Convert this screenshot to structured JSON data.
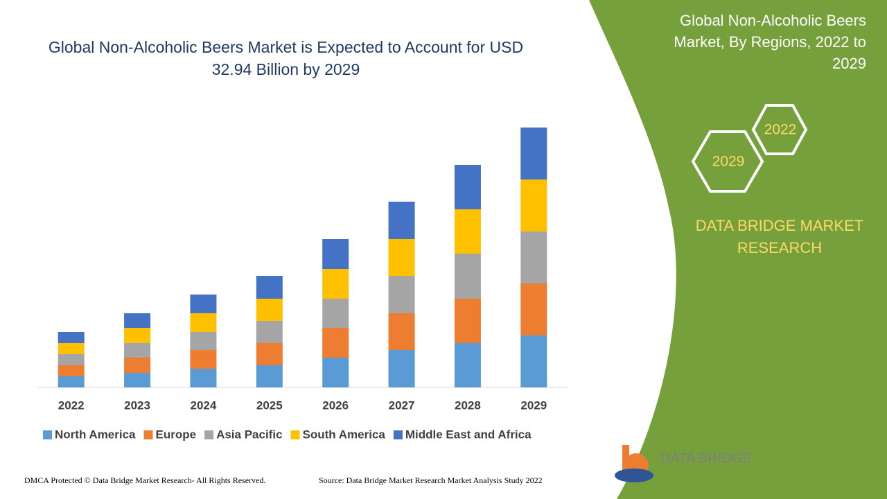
{
  "chart_data": {
    "type": "bar",
    "stacked": true,
    "title": "Global Non-Alcoholic Beers Market is Expected to Account for USD 32.94 Billion by 2029",
    "categories": [
      "2022",
      "2023",
      "2024",
      "2025",
      "2026",
      "2027",
      "2028",
      "2029"
    ],
    "series": [
      {
        "name": "North America",
        "color": "#5b9bd5",
        "values": [
          16,
          21,
          27,
          32,
          43,
          54,
          64,
          75
        ]
      },
      {
        "name": "Europe",
        "color": "#ed7d31",
        "values": [
          16,
          22,
          27,
          32,
          43,
          53,
          64,
          75
        ]
      },
      {
        "name": "Asia Pacific",
        "color": "#a5a5a5",
        "values": [
          16,
          21,
          26,
          32,
          42,
          54,
          65,
          75
        ]
      },
      {
        "name": "South America",
        "color": "#ffc000",
        "values": [
          16,
          22,
          27,
          32,
          43,
          53,
          64,
          75
        ]
      },
      {
        "name": "Middle East and Africa",
        "color": "#4472c4",
        "values": [
          16,
          21,
          27,
          33,
          43,
          54,
          64,
          75
        ]
      }
    ]
  },
  "panel": {
    "title": "Global Non-Alcoholic Beers Market, By Regions, 2022 to 2029",
    "hexagons": [
      "2022",
      "2029"
    ],
    "brand": "DATA BRIDGE MARKET RESEARCH",
    "logo": "DATA BRIDGE"
  },
  "footer": {
    "copyright": "DMCA Protected © Data Bridge Market Research- All Rights Reserved.",
    "source": "Source: Data Bridge Market Research Market Analysis Study 2022"
  }
}
